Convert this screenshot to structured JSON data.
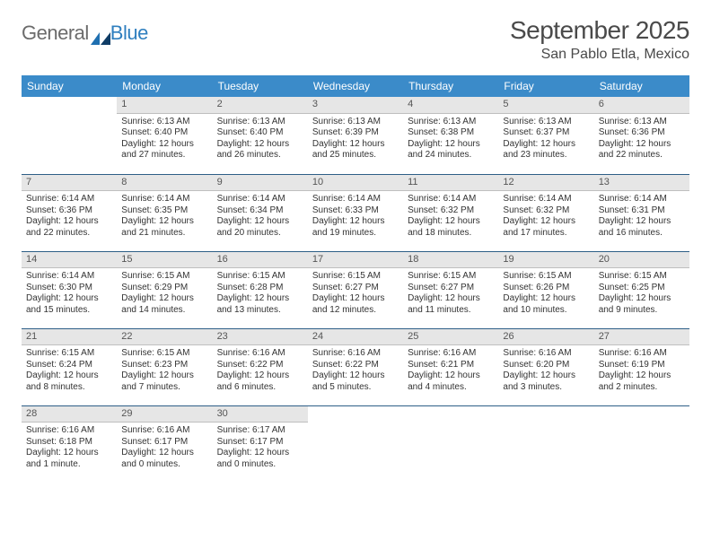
{
  "brand": {
    "part1": "General",
    "part2": "Blue"
  },
  "title": "September 2025",
  "location": "San Pablo Etla, Mexico",
  "colors": {
    "header_bg": "#3b8bc9",
    "header_text": "#ffffff",
    "daynum_bg": "#e6e6e6",
    "row_divider": "#2e5f87",
    "text": "#333333",
    "brand_gray": "#6b6b6b",
    "brand_blue": "#2f7fbf"
  },
  "weekdays": [
    "Sunday",
    "Monday",
    "Tuesday",
    "Wednesday",
    "Thursday",
    "Friday",
    "Saturday"
  ],
  "weeks": [
    [
      {
        "day": "",
        "sunrise": "",
        "sunset": "",
        "daylight": ""
      },
      {
        "day": "1",
        "sunrise": "Sunrise: 6:13 AM",
        "sunset": "Sunset: 6:40 PM",
        "daylight": "Daylight: 12 hours and 27 minutes."
      },
      {
        "day": "2",
        "sunrise": "Sunrise: 6:13 AM",
        "sunset": "Sunset: 6:40 PM",
        "daylight": "Daylight: 12 hours and 26 minutes."
      },
      {
        "day": "3",
        "sunrise": "Sunrise: 6:13 AM",
        "sunset": "Sunset: 6:39 PM",
        "daylight": "Daylight: 12 hours and 25 minutes."
      },
      {
        "day": "4",
        "sunrise": "Sunrise: 6:13 AM",
        "sunset": "Sunset: 6:38 PM",
        "daylight": "Daylight: 12 hours and 24 minutes."
      },
      {
        "day": "5",
        "sunrise": "Sunrise: 6:13 AM",
        "sunset": "Sunset: 6:37 PM",
        "daylight": "Daylight: 12 hours and 23 minutes."
      },
      {
        "day": "6",
        "sunrise": "Sunrise: 6:13 AM",
        "sunset": "Sunset: 6:36 PM",
        "daylight": "Daylight: 12 hours and 22 minutes."
      }
    ],
    [
      {
        "day": "7",
        "sunrise": "Sunrise: 6:14 AM",
        "sunset": "Sunset: 6:36 PM",
        "daylight": "Daylight: 12 hours and 22 minutes."
      },
      {
        "day": "8",
        "sunrise": "Sunrise: 6:14 AM",
        "sunset": "Sunset: 6:35 PM",
        "daylight": "Daylight: 12 hours and 21 minutes."
      },
      {
        "day": "9",
        "sunrise": "Sunrise: 6:14 AM",
        "sunset": "Sunset: 6:34 PM",
        "daylight": "Daylight: 12 hours and 20 minutes."
      },
      {
        "day": "10",
        "sunrise": "Sunrise: 6:14 AM",
        "sunset": "Sunset: 6:33 PM",
        "daylight": "Daylight: 12 hours and 19 minutes."
      },
      {
        "day": "11",
        "sunrise": "Sunrise: 6:14 AM",
        "sunset": "Sunset: 6:32 PM",
        "daylight": "Daylight: 12 hours and 18 minutes."
      },
      {
        "day": "12",
        "sunrise": "Sunrise: 6:14 AM",
        "sunset": "Sunset: 6:32 PM",
        "daylight": "Daylight: 12 hours and 17 minutes."
      },
      {
        "day": "13",
        "sunrise": "Sunrise: 6:14 AM",
        "sunset": "Sunset: 6:31 PM",
        "daylight": "Daylight: 12 hours and 16 minutes."
      }
    ],
    [
      {
        "day": "14",
        "sunrise": "Sunrise: 6:14 AM",
        "sunset": "Sunset: 6:30 PM",
        "daylight": "Daylight: 12 hours and 15 minutes."
      },
      {
        "day": "15",
        "sunrise": "Sunrise: 6:15 AM",
        "sunset": "Sunset: 6:29 PM",
        "daylight": "Daylight: 12 hours and 14 minutes."
      },
      {
        "day": "16",
        "sunrise": "Sunrise: 6:15 AM",
        "sunset": "Sunset: 6:28 PM",
        "daylight": "Daylight: 12 hours and 13 minutes."
      },
      {
        "day": "17",
        "sunrise": "Sunrise: 6:15 AM",
        "sunset": "Sunset: 6:27 PM",
        "daylight": "Daylight: 12 hours and 12 minutes."
      },
      {
        "day": "18",
        "sunrise": "Sunrise: 6:15 AM",
        "sunset": "Sunset: 6:27 PM",
        "daylight": "Daylight: 12 hours and 11 minutes."
      },
      {
        "day": "19",
        "sunrise": "Sunrise: 6:15 AM",
        "sunset": "Sunset: 6:26 PM",
        "daylight": "Daylight: 12 hours and 10 minutes."
      },
      {
        "day": "20",
        "sunrise": "Sunrise: 6:15 AM",
        "sunset": "Sunset: 6:25 PM",
        "daylight": "Daylight: 12 hours and 9 minutes."
      }
    ],
    [
      {
        "day": "21",
        "sunrise": "Sunrise: 6:15 AM",
        "sunset": "Sunset: 6:24 PM",
        "daylight": "Daylight: 12 hours and 8 minutes."
      },
      {
        "day": "22",
        "sunrise": "Sunrise: 6:15 AM",
        "sunset": "Sunset: 6:23 PM",
        "daylight": "Daylight: 12 hours and 7 minutes."
      },
      {
        "day": "23",
        "sunrise": "Sunrise: 6:16 AM",
        "sunset": "Sunset: 6:22 PM",
        "daylight": "Daylight: 12 hours and 6 minutes."
      },
      {
        "day": "24",
        "sunrise": "Sunrise: 6:16 AM",
        "sunset": "Sunset: 6:22 PM",
        "daylight": "Daylight: 12 hours and 5 minutes."
      },
      {
        "day": "25",
        "sunrise": "Sunrise: 6:16 AM",
        "sunset": "Sunset: 6:21 PM",
        "daylight": "Daylight: 12 hours and 4 minutes."
      },
      {
        "day": "26",
        "sunrise": "Sunrise: 6:16 AM",
        "sunset": "Sunset: 6:20 PM",
        "daylight": "Daylight: 12 hours and 3 minutes."
      },
      {
        "day": "27",
        "sunrise": "Sunrise: 6:16 AM",
        "sunset": "Sunset: 6:19 PM",
        "daylight": "Daylight: 12 hours and 2 minutes."
      }
    ],
    [
      {
        "day": "28",
        "sunrise": "Sunrise: 6:16 AM",
        "sunset": "Sunset: 6:18 PM",
        "daylight": "Daylight: 12 hours and 1 minute."
      },
      {
        "day": "29",
        "sunrise": "Sunrise: 6:16 AM",
        "sunset": "Sunset: 6:17 PM",
        "daylight": "Daylight: 12 hours and 0 minutes."
      },
      {
        "day": "30",
        "sunrise": "Sunrise: 6:17 AM",
        "sunset": "Sunset: 6:17 PM",
        "daylight": "Daylight: 12 hours and 0 minutes."
      },
      {
        "day": "",
        "sunrise": "",
        "sunset": "",
        "daylight": ""
      },
      {
        "day": "",
        "sunrise": "",
        "sunset": "",
        "daylight": ""
      },
      {
        "day": "",
        "sunrise": "",
        "sunset": "",
        "daylight": ""
      },
      {
        "day": "",
        "sunrise": "",
        "sunset": "",
        "daylight": ""
      }
    ]
  ]
}
